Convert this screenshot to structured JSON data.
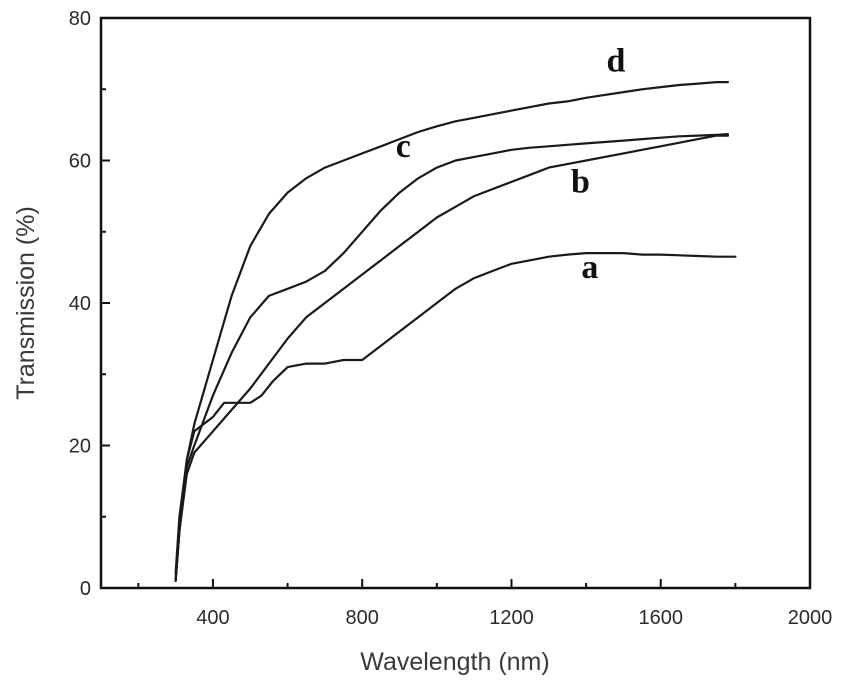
{
  "chart_data": {
    "type": "line",
    "xlabel": "Wavelength (nm)",
    "ylabel": "Transmission (%)",
    "xlim": [
      100,
      2000
    ],
    "ylim": [
      0,
      80
    ],
    "x_ticks": [
      400,
      800,
      1200,
      1600,
      2000
    ],
    "y_ticks": [
      0,
      20,
      40,
      60,
      80
    ],
    "grid": false,
    "series": [
      {
        "name": "a",
        "x": [
          300,
          310,
          330,
          350,
          400,
          430,
          460,
          500,
          530,
          560,
          600,
          650,
          700,
          750,
          800,
          850,
          900,
          950,
          1000,
          1050,
          1100,
          1150,
          1200,
          1250,
          1300,
          1350,
          1400,
          1450,
          1500,
          1550,
          1600,
          1650,
          1700,
          1750,
          1800
        ],
        "y": [
          1,
          8,
          18,
          22,
          24,
          26,
          26,
          26,
          27,
          29,
          31,
          31.5,
          31.5,
          32,
          32,
          34,
          36,
          38,
          40,
          42,
          43.5,
          44.5,
          45.5,
          46,
          46.5,
          46.8,
          47,
          47,
          47,
          46.8,
          46.8,
          46.7,
          46.6,
          46.5,
          46.5
        ]
      },
      {
        "name": "b",
        "x": [
          300,
          310,
          330,
          350,
          400,
          450,
          500,
          550,
          600,
          650,
          700,
          750,
          800,
          850,
          900,
          950,
          1000,
          1050,
          1100,
          1150,
          1200,
          1250,
          1300,
          1350,
          1400,
          1450,
          1500,
          1550,
          1600,
          1650,
          1700,
          1750,
          1780
        ],
        "y": [
          1,
          8,
          16,
          19,
          22,
          25,
          28,
          31.5,
          35,
          38,
          40,
          42,
          44,
          46,
          48,
          50,
          52,
          53.5,
          55,
          56,
          57,
          58,
          59,
          59.5,
          60,
          60.5,
          61,
          61.5,
          62,
          62.5,
          63,
          63.5,
          63.5
        ]
      },
      {
        "name": "c",
        "x": [
          300,
          310,
          330,
          350,
          400,
          450,
          500,
          550,
          600,
          650,
          700,
          750,
          800,
          850,
          900,
          950,
          1000,
          1050,
          1100,
          1150,
          1200,
          1250,
          1300,
          1350,
          1400,
          1450,
          1500,
          1550,
          1600,
          1650,
          1700,
          1750,
          1780
        ],
        "y": [
          1,
          8,
          17,
          20,
          27,
          33,
          38,
          41,
          42,
          43,
          44.5,
          47,
          50,
          53,
          55.5,
          57.5,
          59,
          60,
          60.5,
          61,
          61.5,
          61.8,
          62,
          62.2,
          62.4,
          62.6,
          62.8,
          63,
          63.2,
          63.4,
          63.5,
          63.6,
          63.7
        ]
      },
      {
        "name": "d",
        "x": [
          300,
          310,
          330,
          350,
          400,
          450,
          500,
          550,
          600,
          650,
          700,
          750,
          800,
          850,
          900,
          950,
          1000,
          1050,
          1100,
          1150,
          1200,
          1250,
          1300,
          1350,
          1400,
          1450,
          1500,
          1550,
          1600,
          1650,
          1700,
          1750,
          1780
        ],
        "y": [
          2,
          10,
          18,
          23,
          32,
          41,
          48,
          52.5,
          55.5,
          57.5,
          59,
          60,
          61,
          62,
          63,
          64,
          64.8,
          65.5,
          66,
          66.5,
          67,
          67.5,
          68,
          68.3,
          68.8,
          69.2,
          69.6,
          70,
          70.3,
          70.6,
          70.8,
          71,
          71
        ]
      }
    ],
    "annotations": [
      {
        "text": "d",
        "x": 1480,
        "y": 72.5
      },
      {
        "text": "c",
        "x": 910,
        "y": 60.5
      },
      {
        "text": "b",
        "x": 1385,
        "y": 55.5
      },
      {
        "text": "a",
        "x": 1410,
        "y": 43.5
      }
    ]
  }
}
